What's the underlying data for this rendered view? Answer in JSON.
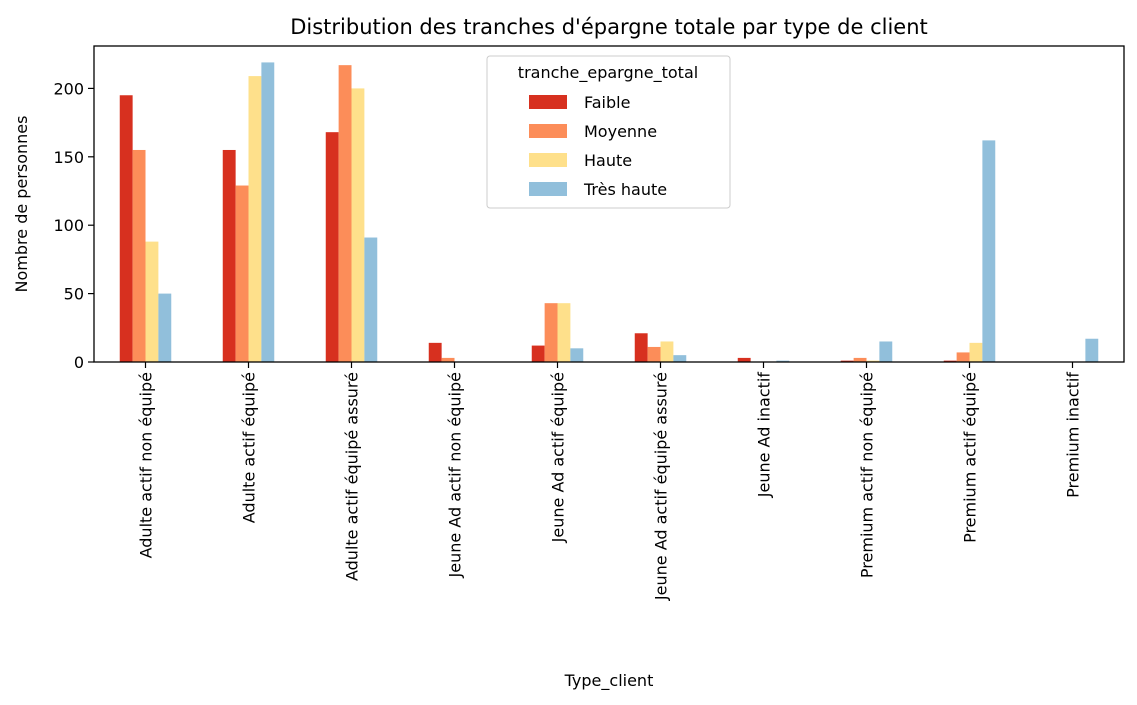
{
  "chart_data": {
    "type": "bar",
    "title": "Distribution des tranches d'épargne totale par type de client",
    "xlabel": "Type_client",
    "ylabel": "Nombre de personnes",
    "ylim": [
      0,
      231
    ],
    "yticks": [
      0,
      50,
      100,
      150,
      200
    ],
    "categories": [
      "Adulte actif non équipé",
      "Adulte actif équipé",
      "Adulte actif équipé assuré",
      "Jeune Ad actif non équipé",
      "Jeune Ad actif équipé",
      "Jeune Ad actif équipé assuré",
      "Jeune Ad inactif",
      "Premium actif non équipé",
      "Premium actif équipé",
      "Premium inactif"
    ],
    "series": [
      {
        "name": "Faible",
        "color": "#d7301f",
        "values": [
          195,
          155,
          168,
          14,
          12,
          21,
          3,
          1,
          1,
          0
        ]
      },
      {
        "name": "Moyenne",
        "color": "#fc8d59",
        "values": [
          155,
          129,
          217,
          3,
          43,
          11,
          0,
          3,
          7,
          0
        ]
      },
      {
        "name": "Haute",
        "color": "#fee08b",
        "values": [
          88,
          209,
          200,
          0,
          43,
          15,
          0,
          1,
          14,
          0
        ]
      },
      {
        "name": "Très haute",
        "color": "#91bfdb",
        "values": [
          50,
          219,
          91,
          0,
          10,
          5,
          1,
          15,
          162,
          17
        ]
      }
    ],
    "legend": {
      "title": "tranche_epargne_total",
      "position": "top-center"
    },
    "grid": false
  }
}
